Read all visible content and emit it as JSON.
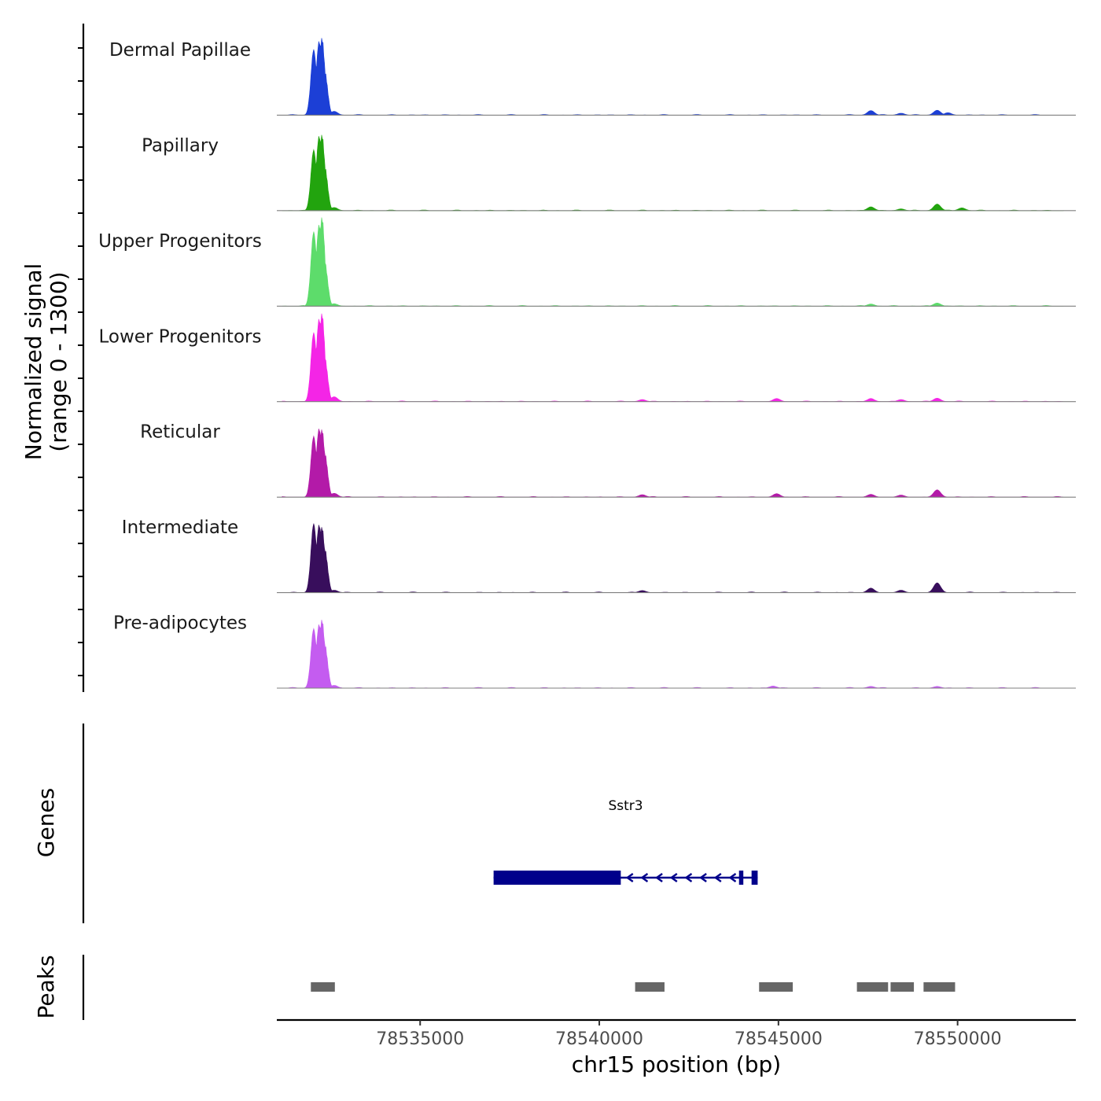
{
  "chart_data": {
    "type": "area",
    "title": "",
    "chromosome": "chr15",
    "xlabel": "chr15 position (bp)",
    "ylabel": "Normalized signal",
    "ylabel_range": "(range 0 - 1300)",
    "xlim": [
      78531000,
      78553300
    ],
    "ylim": [
      0,
      1300
    ],
    "xticks": [
      78535000,
      78540000,
      78545000,
      78550000
    ],
    "xtick_labels": [
      "78535000",
      "78540000",
      "78545000",
      "78550000"
    ],
    "series": [
      {
        "name": "Dermal Papillae",
        "color": "#1c3fd6",
        "peaks": [
          {
            "x": 78532030,
            "y": 970
          },
          {
            "x": 78532180,
            "y": 1090
          },
          {
            "x": 78532260,
            "y": 1130
          },
          {
            "x": 78532340,
            "y": 640
          },
          {
            "x": 78532600,
            "y": 55
          },
          {
            "x": 78547580,
            "y": 65
          },
          {
            "x": 78548420,
            "y": 28
          },
          {
            "x": 78549430,
            "y": 70
          },
          {
            "x": 78549730,
            "y": 35
          }
        ]
      },
      {
        "name": "Papillary",
        "color": "#22a40e",
        "peaks": [
          {
            "x": 78532030,
            "y": 900
          },
          {
            "x": 78532180,
            "y": 1100
          },
          {
            "x": 78532260,
            "y": 1110
          },
          {
            "x": 78532340,
            "y": 640
          },
          {
            "x": 78532600,
            "y": 45
          },
          {
            "x": 78547580,
            "y": 55
          },
          {
            "x": 78548420,
            "y": 25
          },
          {
            "x": 78549430,
            "y": 95
          },
          {
            "x": 78550120,
            "y": 40
          }
        ]
      },
      {
        "name": "Upper Progenitors",
        "color": "#5ddc6b",
        "peaks": [
          {
            "x": 78532030,
            "y": 1100
          },
          {
            "x": 78532180,
            "y": 1200
          },
          {
            "x": 78532260,
            "y": 1300
          },
          {
            "x": 78532340,
            "y": 640
          },
          {
            "x": 78532600,
            "y": 35
          },
          {
            "x": 78547580,
            "y": 30
          },
          {
            "x": 78549430,
            "y": 45
          }
        ]
      },
      {
        "name": "Lower Progenitors",
        "color": "#f425e6",
        "peaks": [
          {
            "x": 78532030,
            "y": 1020
          },
          {
            "x": 78532180,
            "y": 1220
          },
          {
            "x": 78532260,
            "y": 1290
          },
          {
            "x": 78532340,
            "y": 640
          },
          {
            "x": 78532600,
            "y": 70
          },
          {
            "x": 78541200,
            "y": 30
          },
          {
            "x": 78544950,
            "y": 45
          },
          {
            "x": 78547580,
            "y": 45
          },
          {
            "x": 78548420,
            "y": 30
          },
          {
            "x": 78549430,
            "y": 50
          }
        ]
      },
      {
        "name": "Reticular",
        "color": "#b31aa8",
        "peaks": [
          {
            "x": 78532030,
            "y": 900
          },
          {
            "x": 78532180,
            "y": 1010
          },
          {
            "x": 78532260,
            "y": 990
          },
          {
            "x": 78532340,
            "y": 640
          },
          {
            "x": 78532600,
            "y": 55
          },
          {
            "x": 78541200,
            "y": 35
          },
          {
            "x": 78544950,
            "y": 50
          },
          {
            "x": 78547580,
            "y": 40
          },
          {
            "x": 78548420,
            "y": 30
          },
          {
            "x": 78549430,
            "y": 105
          }
        ]
      },
      {
        "name": "Intermediate",
        "color": "#380e5c",
        "peaks": [
          {
            "x": 78532030,
            "y": 1020
          },
          {
            "x": 78532180,
            "y": 1000
          },
          {
            "x": 78532260,
            "y": 960
          },
          {
            "x": 78532340,
            "y": 640
          },
          {
            "x": 78532600,
            "y": 35
          },
          {
            "x": 78541200,
            "y": 30
          },
          {
            "x": 78547580,
            "y": 65
          },
          {
            "x": 78548420,
            "y": 35
          },
          {
            "x": 78549430,
            "y": 140
          }
        ]
      },
      {
        "name": "Pre-adipocytes",
        "color": "#c45cf0",
        "peaks": [
          {
            "x": 78532030,
            "y": 880
          },
          {
            "x": 78532180,
            "y": 940
          },
          {
            "x": 78532260,
            "y": 1000
          },
          {
            "x": 78532340,
            "y": 640
          },
          {
            "x": 78532600,
            "y": 40
          },
          {
            "x": 78544850,
            "y": 30
          },
          {
            "x": 78547580,
            "y": 25
          },
          {
            "x": 78549430,
            "y": 25
          }
        ]
      }
    ],
    "genes": [
      {
        "name": "Sstr3",
        "strand": "-",
        "color": "#00008b",
        "exons": [
          [
            78537050,
            78540600
          ],
          [
            78543900,
            78544020
          ],
          [
            78544250,
            78544420
          ]
        ],
        "start": 78537050,
        "end": 78544420
      }
    ],
    "genes_track_label": "Genes",
    "peaks_track_label": "Peaks",
    "peak_color": "#666666",
    "peak_regions": [
      [
        78531950,
        78532620
      ],
      [
        78541000,
        78541820
      ],
      [
        78544460,
        78545400
      ],
      [
        78547190,
        78548060
      ],
      [
        78548130,
        78548780
      ],
      [
        78549050,
        78549930
      ]
    ]
  }
}
